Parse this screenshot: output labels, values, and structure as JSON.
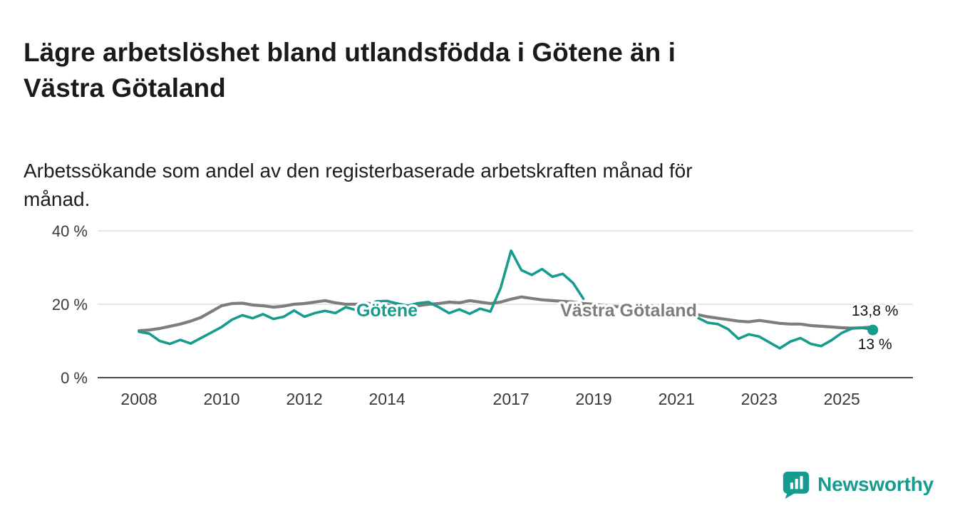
{
  "page": {
    "brand": {
      "name": "Newsworthy",
      "color": "#169c8f",
      "logo_icon": "bar-chart-bubble-icon"
    }
  },
  "chart_data": {
    "type": "line",
    "title": "Lägre arbetslöshet bland utlandsfödda i Götene än i\nVästra Götaland",
    "subtitle": "Arbetssökande som andel av den registerbaserade arbetskraften månad för\nmånad.",
    "unit": "%",
    "xlabel": "",
    "ylabel": "",
    "xlim": [
      2007,
      2026.72
    ],
    "ylim": [
      0,
      40
    ],
    "grid": "horizontal",
    "legend_position": "inline-labels",
    "yticks": [
      {
        "value": 40,
        "label": "40 %"
      },
      {
        "value": 20,
        "label": "20 %"
      },
      {
        "value": 0,
        "label": "0 %"
      }
    ],
    "xticks": [
      {
        "value": 2008,
        "label": "2008"
      },
      {
        "value": 2010,
        "label": "2010"
      },
      {
        "value": 2012,
        "label": "2012"
      },
      {
        "value": 2014,
        "label": "2014"
      },
      {
        "value": 2017,
        "label": "2017"
      },
      {
        "value": 2019,
        "label": "2019"
      },
      {
        "value": 2021,
        "label": "2021"
      },
      {
        "value": 2023,
        "label": "2023"
      },
      {
        "value": 2025,
        "label": "2025"
      }
    ],
    "x": [
      2008,
      2008.25,
      2008.5,
      2008.75,
      2009,
      2009.25,
      2009.5,
      2009.75,
      2010,
      2010.25,
      2010.5,
      2010.75,
      2011,
      2011.25,
      2011.5,
      2011.75,
      2012,
      2012.25,
      2012.5,
      2012.75,
      2013,
      2013.25,
      2013.5,
      2013.75,
      2014,
      2014.25,
      2014.5,
      2014.75,
      2015,
      2015.25,
      2015.5,
      2015.75,
      2016,
      2016.25,
      2016.5,
      2016.75,
      2017,
      2017.25,
      2017.5,
      2017.75,
      2018,
      2018.25,
      2018.5,
      2018.75,
      2019,
      2019.25,
      2019.5,
      2019.75,
      2020,
      2020.25,
      2020.5,
      2020.75,
      2021,
      2021.25,
      2021.5,
      2021.75,
      2022,
      2022.25,
      2022.5,
      2022.75,
      2023,
      2023.25,
      2023.5,
      2023.75,
      2024,
      2024.25,
      2024.5,
      2024.75,
      2025,
      2025.25,
      2025.5,
      2025.75
    ],
    "series": [
      {
        "name": "Götene",
        "color": "#169c8f",
        "end_value": 13.0,
        "end_label": "13 %",
        "values": [
          12.5,
          12.0,
          10.0,
          9.2,
          10.3,
          9.3,
          10.8,
          12.3,
          13.8,
          15.8,
          17.0,
          16.2,
          17.3,
          16.0,
          16.6,
          18.3,
          16.6,
          17.6,
          18.2,
          17.6,
          19.2,
          18.4,
          19.6,
          20.8,
          20.9,
          20.2,
          19.6,
          20.3,
          20.6,
          19.2,
          17.6,
          18.6,
          17.4,
          18.8,
          18.0,
          24.5,
          34.6,
          29.3,
          28.0,
          29.6,
          27.5,
          28.3,
          25.8,
          21.5,
          null,
          17.6,
          17.2,
          null,
          null,
          null,
          null,
          null,
          null,
          null,
          16.4,
          15.0,
          14.6,
          13.2,
          10.6,
          11.8,
          11.2,
          9.6,
          8.0,
          9.8,
          10.8,
          9.2,
          8.6,
          10.2,
          12.2,
          13.4,
          13.6,
          13.0
        ]
      },
      {
        "name": "Västra Götaland",
        "color": "#7d7d7d",
        "end_value": 13.8,
        "end_label": "13,8 %",
        "values": [
          12.8,
          13.0,
          13.4,
          14.0,
          14.6,
          15.4,
          16.4,
          18.0,
          19.6,
          20.2,
          20.3,
          19.8,
          19.6,
          19.2,
          19.5,
          20.0,
          20.2,
          20.6,
          21.0,
          20.4,
          20.0,
          20.0,
          20.3,
          20.0,
          19.8,
          19.6,
          19.5,
          19.6,
          20.0,
          20.2,
          20.6,
          20.4,
          21.0,
          20.6,
          20.2,
          20.6,
          21.4,
          22.0,
          21.6,
          21.2,
          21.0,
          20.8,
          20.6,
          20.2,
          20.0,
          19.6,
          19.4,
          19.2,
          19.2,
          19.6,
          19.6,
          19.2,
          18.6,
          18.0,
          17.2,
          16.6,
          16.2,
          15.8,
          15.4,
          15.2,
          15.6,
          15.2,
          14.8,
          14.6,
          14.6,
          14.2,
          14.0,
          13.8,
          13.6,
          13.5,
          13.6,
          13.8
        ]
      }
    ]
  }
}
